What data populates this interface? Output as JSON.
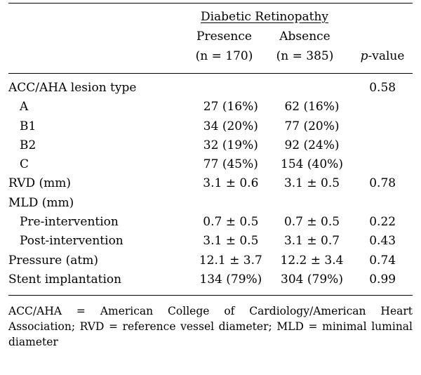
{
  "header": {
    "group": "Diabetic Retinopathy",
    "presence": "Presence",
    "absence": "Absence",
    "presence_n": "(n = 170)",
    "absence_n": "(n = 385)",
    "p_label": "p",
    "p_suffix": "-value"
  },
  "rows": [
    {
      "label": "ACC/AHA lesion type",
      "presence": "",
      "absence": "",
      "p": "0.58",
      "indent": false
    },
    {
      "label": "A",
      "presence": "27 (16%)",
      "absence": "62 (16%)",
      "p": "",
      "indent": true
    },
    {
      "label": "B1",
      "presence": "34 (20%)",
      "absence": "77 (20%)",
      "p": "",
      "indent": true
    },
    {
      "label": "B2",
      "presence": "32 (19%)",
      "absence": "92 (24%)",
      "p": "",
      "indent": true
    },
    {
      "label": "C",
      "presence": "77 (45%)",
      "absence": "154 (40%)",
      "p": "",
      "indent": true
    },
    {
      "label": "RVD (mm)",
      "presence": "3.1 ± 0.6",
      "absence": "3.1 ± 0.5",
      "p": "0.78",
      "indent": false
    },
    {
      "label": "MLD (mm)",
      "presence": "",
      "absence": "",
      "p": "",
      "indent": false
    },
    {
      "label": "Pre-intervention",
      "presence": "0.7 ± 0.5",
      "absence": "0.7 ± 0.5",
      "p": "0.22",
      "indent": true
    },
    {
      "label": "Post-intervention",
      "presence": "3.1 ± 0.5",
      "absence": "3.1 ± 0.7",
      "p": "0.43",
      "indent": true
    },
    {
      "label": "Pressure (atm)",
      "presence": "12.1 ± 3.7",
      "absence": "12.2 ± 3.4",
      "p": "0.74",
      "indent": false
    },
    {
      "label": "Stent implantation",
      "presence": "134 (79%)",
      "absence": "304 (79%)",
      "p": "0.99",
      "indent": false
    }
  ],
  "footnote": "ACC/AHA = American College of Cardiology/American Heart Association; RVD = reference vessel diameter; MLD = minimal luminal diameter"
}
